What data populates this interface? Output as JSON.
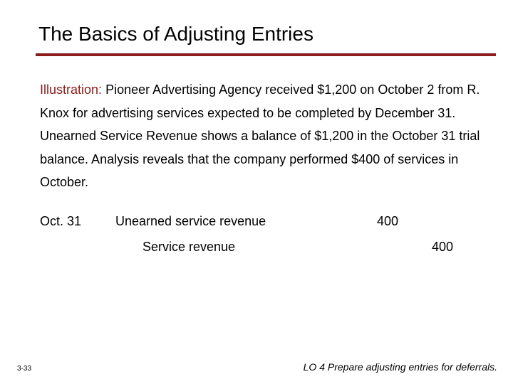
{
  "slide": {
    "title": "The Basics of Adjusting Entries",
    "accent_color": "#8b1a1a"
  },
  "illustration": {
    "label": "Illustration:",
    "text": "Pioneer Advertising Agency received $1,200 on October 2 from R. Knox for advertising services expected to be completed by December 31.  Unearned Service Revenue shows a balance of $1,200 in the October 31 trial balance. Analysis reveals that the company performed $400 of services in October."
  },
  "journal_entry": {
    "date": "Oct. 31",
    "debit_account": "Unearned service revenue",
    "debit_amount": "400",
    "credit_account": "Service revenue",
    "credit_amount": "400"
  },
  "footer": {
    "page_number": "3-33",
    "learning_objective": "LO 4  Prepare adjusting entries for deferrals."
  }
}
